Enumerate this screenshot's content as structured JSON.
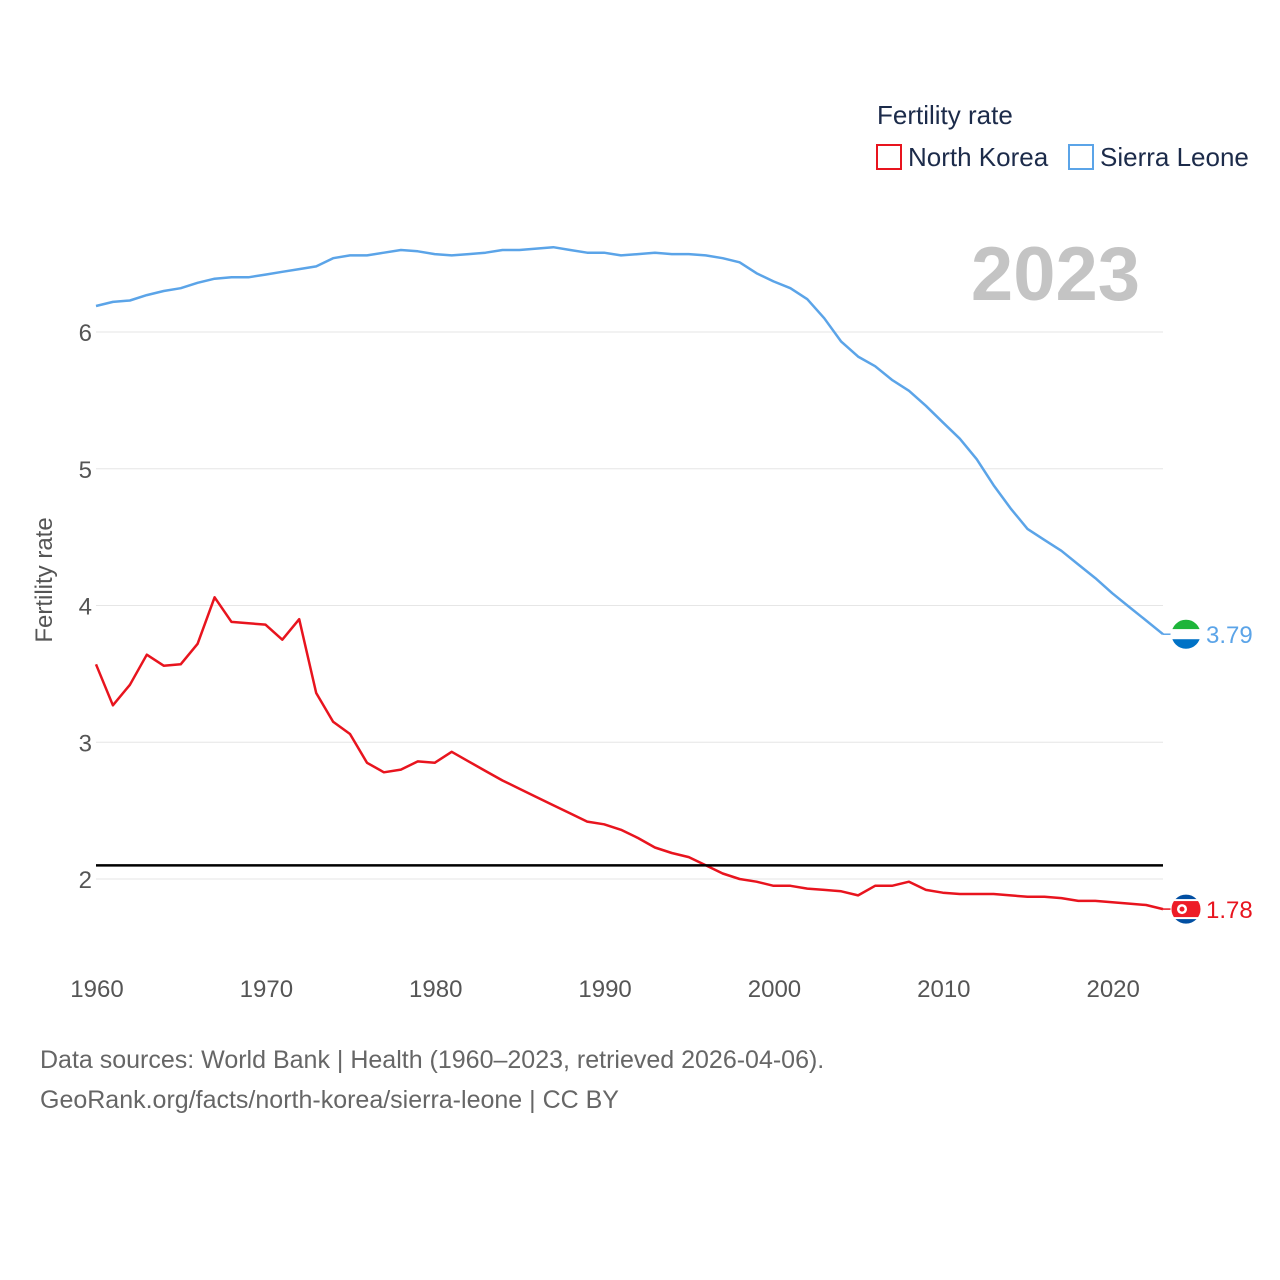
{
  "chart_data": {
    "type": "line",
    "legend_title": "Fertility rate",
    "ylabel": "Fertility rate",
    "xlabel": "",
    "year_label": "2023",
    "xlim": [
      1960,
      2023
    ],
    "ylim": [
      1.5,
      6.9
    ],
    "yticks": [
      2,
      3,
      4,
      5,
      6
    ],
    "xticks": [
      1960,
      1970,
      1980,
      1990,
      2000,
      2010,
      2020
    ],
    "reference_line": 2.1,
    "x": [
      1960,
      1961,
      1962,
      1963,
      1964,
      1965,
      1966,
      1967,
      1968,
      1969,
      1970,
      1971,
      1972,
      1973,
      1974,
      1975,
      1976,
      1977,
      1978,
      1979,
      1980,
      1981,
      1982,
      1983,
      1984,
      1985,
      1986,
      1987,
      1988,
      1989,
      1990,
      1991,
      1992,
      1993,
      1994,
      1995,
      1996,
      1997,
      1998,
      1999,
      2000,
      2001,
      2002,
      2003,
      2004,
      2005,
      2006,
      2007,
      2008,
      2009,
      2010,
      2011,
      2012,
      2013,
      2014,
      2015,
      2016,
      2017,
      2018,
      2019,
      2020,
      2021,
      2022,
      2023
    ],
    "series": [
      {
        "name": "North Korea",
        "color": "#e8141e",
        "end_label": "1.78",
        "values": [
          3.57,
          3.27,
          3.42,
          3.64,
          3.56,
          3.57,
          3.72,
          4.06,
          3.88,
          3.87,
          3.86,
          3.75,
          3.9,
          3.36,
          3.15,
          3.06,
          2.85,
          2.78,
          2.8,
          2.86,
          2.85,
          2.93,
          2.86,
          2.79,
          2.72,
          2.66,
          2.6,
          2.54,
          2.48,
          2.42,
          2.4,
          2.36,
          2.3,
          2.23,
          2.19,
          2.16,
          2.1,
          2.04,
          2.0,
          1.98,
          1.95,
          1.95,
          1.93,
          1.92,
          1.91,
          1.88,
          1.95,
          1.95,
          1.98,
          1.92,
          1.9,
          1.89,
          1.89,
          1.89,
          1.88,
          1.87,
          1.87,
          1.86,
          1.84,
          1.84,
          1.83,
          1.82,
          1.81,
          1.78
        ]
      },
      {
        "name": "Sierra Leone",
        "color": "#5ba4e8",
        "end_label": "3.79",
        "values": [
          6.19,
          6.22,
          6.23,
          6.27,
          6.3,
          6.32,
          6.36,
          6.39,
          6.4,
          6.4,
          6.42,
          6.44,
          6.46,
          6.48,
          6.54,
          6.56,
          6.56,
          6.58,
          6.6,
          6.59,
          6.57,
          6.56,
          6.57,
          6.58,
          6.6,
          6.6,
          6.61,
          6.62,
          6.6,
          6.58,
          6.58,
          6.56,
          6.57,
          6.58,
          6.57,
          6.57,
          6.56,
          6.54,
          6.51,
          6.43,
          6.37,
          6.32,
          6.24,
          6.1,
          5.93,
          5.82,
          5.75,
          5.65,
          5.57,
          5.46,
          5.34,
          5.22,
          5.07,
          4.88,
          4.71,
          4.56,
          4.48,
          4.4,
          4.3,
          4.2,
          4.09,
          3.99,
          3.89,
          3.79
        ]
      }
    ]
  },
  "footer": {
    "line1": "Data sources: World Bank | Health (1960–2023, retrieved 2026-04-06).",
    "line2": "GeoRank.org/facts/north-korea/sierra-leone | CC BY"
  }
}
